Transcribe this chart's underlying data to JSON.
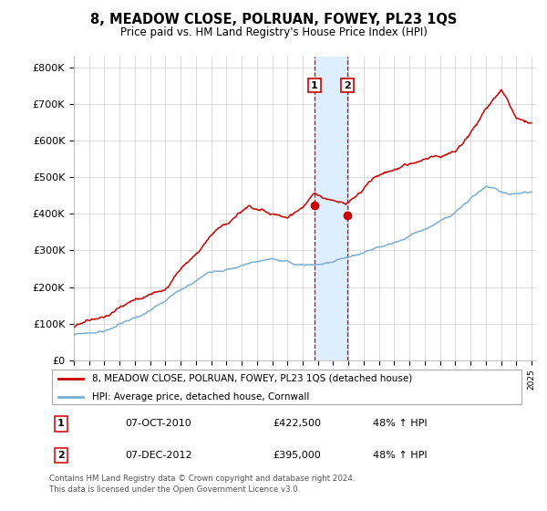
{
  "title": "8, MEADOW CLOSE, POLRUAN, FOWEY, PL23 1QS",
  "subtitle": "Price paid vs. HM Land Registry's House Price Index (HPI)",
  "sale1_date": 2010.77,
  "sale1_price": 422500,
  "sale2_date": 2012.92,
  "sale2_price": 395000,
  "hpi_color": "#7bafd4",
  "price_color": "#cc0000",
  "shade_color": "#ddeeff",
  "vline_color": "#cc0000",
  "legend_label_price": "8, MEADOW CLOSE, POLRUAN, FOWEY, PL23 1QS (detached house)",
  "legend_label_hpi": "HPI: Average price, detached house, Cornwall",
  "table_rows": [
    {
      "num": "1",
      "date": "07-OCT-2010",
      "price": "£422,500",
      "hpi": "48% ↑ HPI"
    },
    {
      "num": "2",
      "date": "07-DEC-2012",
      "price": "£395,000",
      "hpi": "48% ↑ HPI"
    }
  ],
  "footer": "Contains HM Land Registry data © Crown copyright and database right 2024.\nThis data is licensed under the Open Government Licence v3.0."
}
